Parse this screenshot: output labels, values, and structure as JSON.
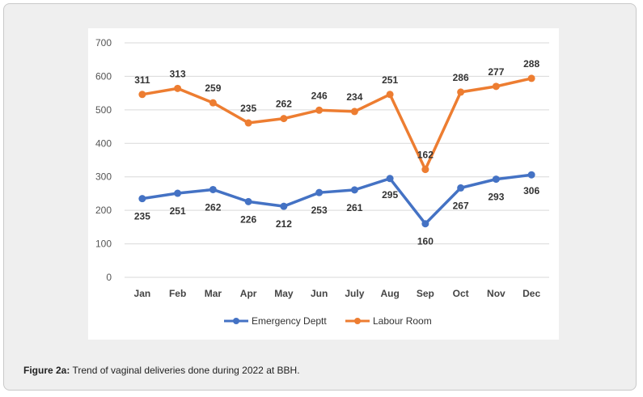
{
  "caption": {
    "label": "Figure 2a:",
    "text": " Trend of vaginal deliveries done during 2022 at BBH."
  },
  "chart_data": {
    "type": "line",
    "title": "",
    "xlabel": "",
    "ylabel": "",
    "categories": [
      "Jan",
      "Feb",
      "Mar",
      "Apr",
      "May",
      "Jun",
      "July",
      "Aug",
      "Sep",
      "Oct",
      "Nov",
      "Dec"
    ],
    "ylim": [
      0,
      700
    ],
    "yticks": [
      0,
      100,
      200,
      300,
      400,
      500,
      600,
      700
    ],
    "grid": true,
    "legend_position": "bottom",
    "series": [
      {
        "name": "Emergency Deptt",
        "color": "#4472c4",
        "values": [
          235,
          251,
          262,
          226,
          212,
          253,
          261,
          295,
          160,
          267,
          293,
          306
        ],
        "labels": [
          "235",
          "251",
          "262",
          "226",
          "212",
          "253",
          "261",
          "295",
          "160",
          "267",
          "293",
          "306"
        ]
      },
      {
        "name": "Labour Room",
        "color": "#ed7d31",
        "values": [
          546,
          564,
          521,
          461,
          474,
          499,
          495,
          546,
          322,
          553,
          570,
          594
        ],
        "labels": [
          "311",
          "313",
          "259",
          "235",
          "262",
          "246",
          "234",
          "251",
          "162",
          "286",
          "277",
          "288"
        ]
      }
    ]
  }
}
